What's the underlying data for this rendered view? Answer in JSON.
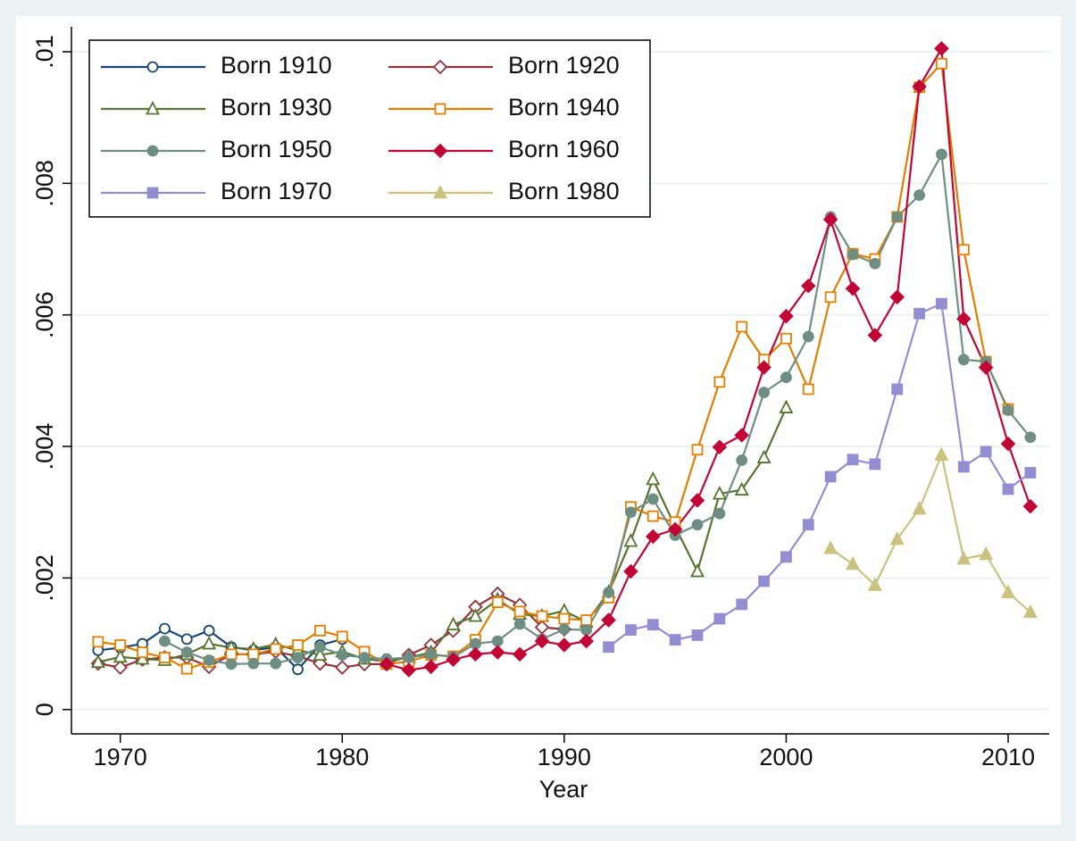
{
  "chart_data": {
    "type": "line",
    "x_label": "Year",
    "x": [
      1969,
      1970,
      1971,
      1972,
      1973,
      1974,
      1975,
      1976,
      1977,
      1978,
      1979,
      1980,
      1981,
      1982,
      1983,
      1984,
      1985,
      1986,
      1987,
      1988,
      1989,
      1990,
      1991,
      1992,
      1993,
      1994,
      1995,
      1996,
      1997,
      1998,
      1999,
      2000,
      2001,
      2002,
      2003,
      2004,
      2005,
      2006,
      2007,
      2008,
      2009,
      2010,
      2011
    ],
    "xlim": [
      1967.8,
      2011.85
    ],
    "xticks": [
      1970,
      1980,
      1990,
      2000,
      2010
    ],
    "ylim": [
      -0.00037,
      0.01038
    ],
    "yticks": [
      0,
      {
        "value": 0.002,
        "label": ".002"
      },
      {
        "value": 0.004,
        "label": ".004"
      },
      {
        "value": 0.006,
        "label": ".006"
      },
      {
        "value": 0.008,
        "label": ".008"
      },
      {
        "value": 0.01,
        "label": ".01"
      }
    ],
    "grid": true,
    "legend": "top-left",
    "series": [
      {
        "name": "Born 1910",
        "color": "#1a476f",
        "marker": "circle",
        "filled": false,
        "values": [
          0.0009,
          0.00094,
          0.001,
          0.00123,
          0.00107,
          0.0012,
          0.00095,
          0.0009,
          0.00095,
          0.00061,
          0.00098,
          0.00107,
          null,
          null,
          null,
          null,
          null,
          null,
          null,
          null,
          null,
          null,
          null,
          null,
          null,
          null,
          null,
          null,
          null,
          null,
          null,
          null,
          null,
          null,
          null,
          null,
          null,
          null,
          null,
          null,
          null,
          null,
          null
        ]
      },
      {
        "name": "Born 1920",
        "color": "#90353b",
        "marker": "diamond",
        "filled": false,
        "values": [
          0.0007,
          0.00064,
          0.00076,
          0.00079,
          0.00079,
          0.00065,
          0.00084,
          0.00084,
          0.00088,
          0.00081,
          0.0007,
          0.00064,
          0.00069,
          0.00069,
          0.00083,
          0.00098,
          0.0012,
          0.00156,
          0.00176,
          0.00159,
          0.00125,
          0.00122,
          null,
          null,
          null,
          null,
          null,
          null,
          null,
          null,
          null,
          null,
          null,
          null,
          null,
          null,
          null,
          null,
          null,
          null,
          null,
          null,
          null
        ]
      },
      {
        "name": "Born 1930",
        "color": "#55752f",
        "marker": "triangle",
        "filled": false,
        "values": [
          0.00072,
          0.0008,
          0.00077,
          0.00075,
          0.00084,
          0.001,
          0.00094,
          0.00092,
          0.00099,
          0.0009,
          0.00083,
          0.00088,
          0.00077,
          0.00073,
          0.00079,
          0.00087,
          0.00129,
          0.00142,
          0.00167,
          0.00145,
          0.00142,
          0.0015,
          0.00133,
          0.00178,
          0.00256,
          0.0035,
          0.00278,
          0.0021,
          0.00328,
          0.00334,
          0.00383,
          0.00459,
          null,
          null,
          null,
          null,
          null,
          null,
          null,
          null,
          null,
          null,
          null
        ]
      },
      {
        "name": "Born 1940",
        "color": "#e37e00",
        "marker": "square",
        "filled": false,
        "values": [
          0.00103,
          0.00098,
          0.00087,
          0.00079,
          0.00062,
          0.00072,
          0.00084,
          0.00084,
          0.00092,
          0.00098,
          0.0012,
          0.00111,
          0.00088,
          0.00069,
          0.00073,
          0.00083,
          0.00081,
          0.00106,
          0.00163,
          0.00149,
          0.00142,
          0.00138,
          0.00136,
          0.0017,
          0.00308,
          0.00294,
          0.00285,
          0.00395,
          0.00498,
          0.00582,
          0.00532,
          0.00564,
          0.00487,
          0.00627,
          0.00693,
          0.00685,
          0.00749,
          0.00946,
          0.00982,
          0.00699,
          0.00529,
          0.00457,
          null
        ]
      },
      {
        "name": "Born 1950",
        "color": "#6e8e84",
        "marker": "circle",
        "filled": true,
        "values": [
          null,
          null,
          null,
          0.00104,
          0.00087,
          0.00075,
          0.00069,
          0.0007,
          0.0007,
          0.00079,
          0.00095,
          0.00083,
          0.00079,
          0.00077,
          0.00079,
          0.00084,
          0.0008,
          0.001,
          0.00104,
          0.0013,
          0.00107,
          0.00122,
          0.00121,
          0.00178,
          0.003,
          0.0032,
          0.00265,
          0.00281,
          0.00298,
          0.00379,
          0.00482,
          0.00505,
          0.00567,
          0.00749,
          0.00692,
          0.00678,
          0.00749,
          0.00782,
          0.00844,
          0.00532,
          0.00529,
          0.00455,
          0.00414
        ]
      },
      {
        "name": "Born 1960",
        "color": "#c10534",
        "marker": "diamond",
        "filled": true,
        "values": [
          null,
          null,
          null,
          null,
          null,
          null,
          null,
          null,
          null,
          null,
          null,
          null,
          null,
          0.00069,
          0.0006,
          0.00065,
          0.00076,
          0.00084,
          0.00087,
          0.00084,
          0.00104,
          0.00098,
          0.00104,
          0.00136,
          0.0021,
          0.00263,
          0.00274,
          0.00318,
          0.00399,
          0.00417,
          0.0052,
          0.00598,
          0.00644,
          0.00745,
          0.0064,
          0.00569,
          0.00627,
          0.00947,
          0.01005,
          0.00594,
          0.0052,
          0.00404,
          0.00309
        ]
      },
      {
        "name": "Born 1970",
        "color": "#938dd2",
        "marker": "square",
        "filled": true,
        "values": [
          null,
          null,
          null,
          null,
          null,
          null,
          null,
          null,
          null,
          null,
          null,
          null,
          null,
          null,
          null,
          null,
          null,
          null,
          null,
          null,
          null,
          null,
          null,
          0.00095,
          0.00121,
          0.00129,
          0.00106,
          0.00113,
          0.00138,
          0.0016,
          0.00195,
          0.00232,
          0.00281,
          0.00354,
          0.0038,
          0.00373,
          0.00487,
          0.00602,
          0.00617,
          0.00369,
          0.00392,
          0.00335,
          0.0036
        ]
      },
      {
        "name": "Born 1980",
        "color": "#cac27e",
        "marker": "triangle",
        "filled": true,
        "values": [
          null,
          null,
          null,
          null,
          null,
          null,
          null,
          null,
          null,
          null,
          null,
          null,
          null,
          null,
          null,
          null,
          null,
          null,
          null,
          null,
          null,
          null,
          null,
          null,
          null,
          null,
          null,
          null,
          null,
          null,
          null,
          null,
          null,
          0.00245,
          0.00221,
          0.00189,
          0.00259,
          0.00305,
          0.00387,
          0.00229,
          0.00236,
          0.00178,
          0.00148
        ]
      }
    ]
  }
}
